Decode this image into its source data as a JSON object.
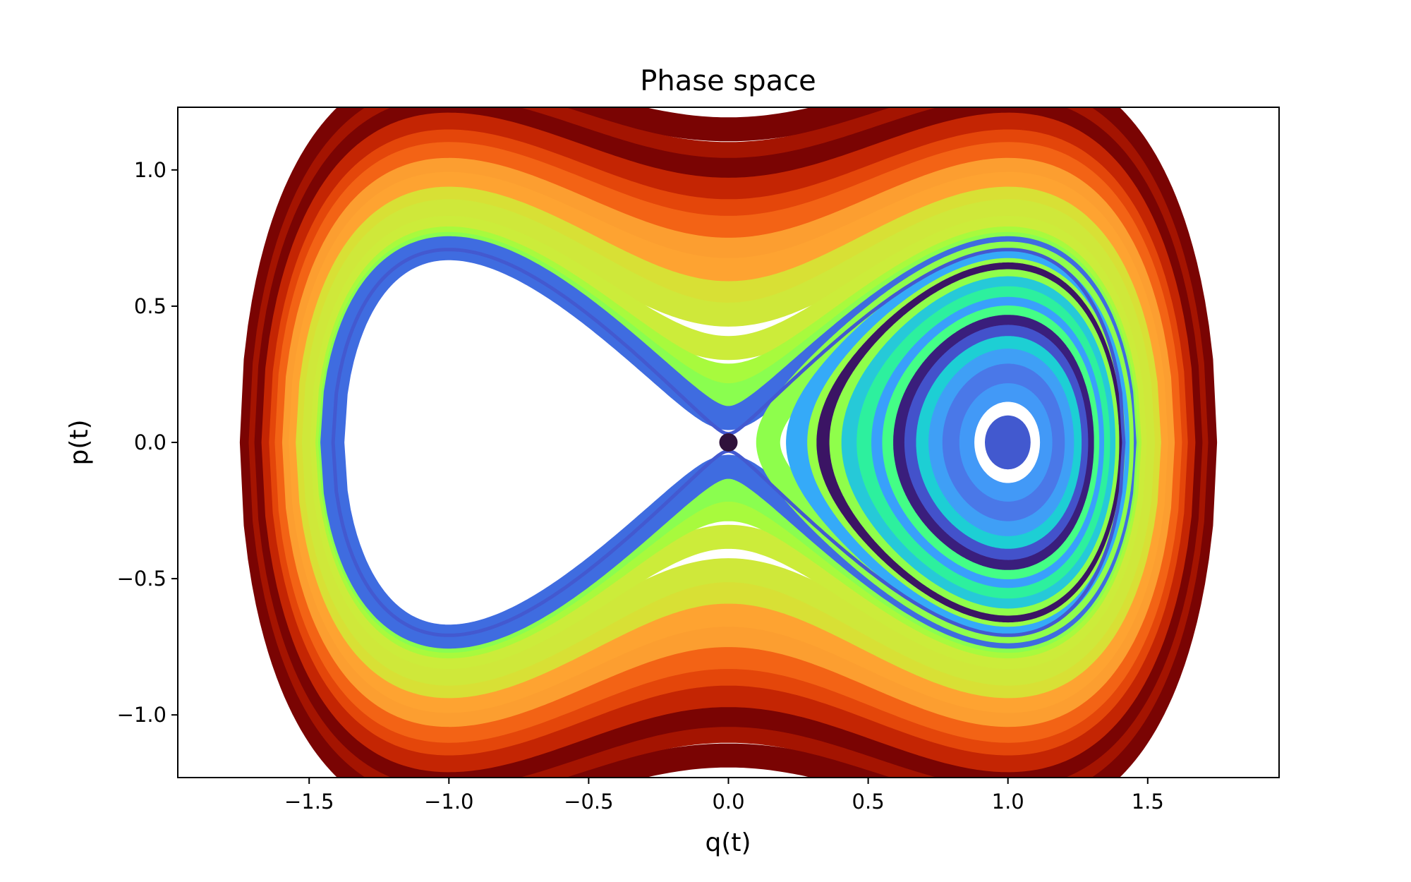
{
  "chart_data": {
    "type": "line",
    "title": "Phase space",
    "xlabel": "q(t)",
    "ylabel": "p(t)",
    "xlim": [
      -1.97,
      1.97
    ],
    "ylim": [
      -1.23,
      1.23
    ],
    "xticks": [
      -1.5,
      -1.0,
      -0.5,
      0.0,
      0.5,
      1.0,
      1.5
    ],
    "xtick_labels": [
      "−1.5",
      "−1.0",
      "−0.5",
      "0.0",
      "0.5",
      "1.0",
      "1.5"
    ],
    "yticks": [
      -1.0,
      -0.5,
      0.0,
      0.5,
      1.0
    ],
    "ytick_labels": [
      "−1.0",
      "−0.5",
      "0.0",
      "0.5",
      "1.0"
    ],
    "grid": false,
    "hamiltonian": "H = p^2/2 - q^2/2 + q^4/4",
    "colormap": "turbo",
    "series": [
      {
        "kind": "outer",
        "energy": 0.66,
        "color": "#7a0403"
      },
      {
        "kind": "outer",
        "energy": 0.56,
        "color": "#a41401"
      },
      {
        "kind": "outer",
        "energy": 0.5,
        "color": "#7a0403"
      },
      {
        "kind": "outer",
        "energy": 0.43,
        "color": "#c42503"
      },
      {
        "kind": "outer",
        "energy": 0.36,
        "color": "#e4460a"
      },
      {
        "kind": "outer",
        "energy": 0.31,
        "color": "#f36315"
      },
      {
        "kind": "outer",
        "energy": 0.25,
        "color": "#fc9e30"
      },
      {
        "kind": "outer",
        "energy": 0.2,
        "color": "#fea331"
      },
      {
        "kind": "outer",
        "energy": 0.15,
        "color": "#d8e035"
      },
      {
        "kind": "outer",
        "energy": 0.11,
        "color": "#cfe83a"
      },
      {
        "kind": "outer",
        "energy": 0.06,
        "color": "#ccec3a"
      },
      {
        "kind": "outer",
        "energy": 0.03,
        "color": "#a8fa3d"
      },
      {
        "kind": "outer",
        "energy": 0.015,
        "color": "#8afe4f"
      },
      {
        "kind": "outer",
        "energy": 0.004,
        "color": "#3f6ce0"
      },
      {
        "kind": "right",
        "energy": -0.01,
        "color": "#8efe4c"
      },
      {
        "kind": "right",
        "energy": -0.03,
        "color": "#35aaf8"
      },
      {
        "kind": "right",
        "energy": -0.05,
        "color": "#96fe47"
      },
      {
        "kind": "right",
        "energy": -0.06,
        "color": "#3b1464"
      },
      {
        "kind": "right",
        "energy": -0.075,
        "color": "#8ffe4b"
      },
      {
        "kind": "right",
        "energy": -0.09,
        "color": "#26c9d8"
      },
      {
        "kind": "right",
        "energy": -0.11,
        "color": "#2df09e"
      },
      {
        "kind": "right",
        "energy": -0.13,
        "color": "#39a0fb"
      },
      {
        "kind": "right",
        "energy": -0.145,
        "color": "#44fe86"
      },
      {
        "kind": "right",
        "energy": -0.16,
        "color": "#3a1e7c"
      },
      {
        "kind": "right",
        "energy": -0.175,
        "color": "#4352cb"
      },
      {
        "kind": "right",
        "energy": -0.19,
        "color": "#1dcfd4"
      },
      {
        "kind": "right",
        "energy": -0.205,
        "color": "#3f9ff6"
      },
      {
        "kind": "right",
        "energy": -0.22,
        "color": "#4a78e8"
      },
      {
        "kind": "right",
        "energy": -0.235,
        "color": "#4299f7"
      },
      {
        "kind": "right",
        "energy": -0.2445,
        "color": "#ffffff"
      },
      {
        "kind": "right",
        "energy": -0.2485,
        "color": "#4259cf"
      }
    ],
    "points": [
      {
        "q": 0.0,
        "p": 0.0,
        "color": "#30123b"
      }
    ]
  }
}
